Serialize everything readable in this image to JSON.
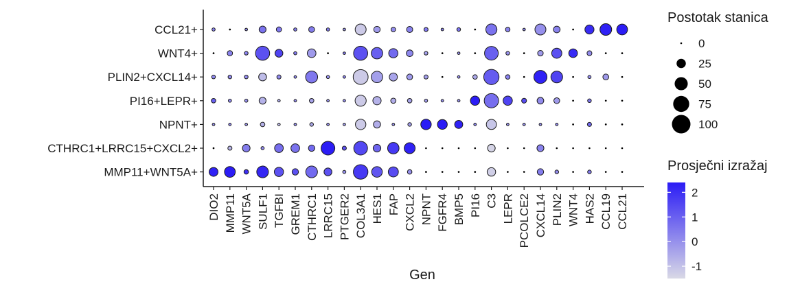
{
  "chart_data": {
    "type": "dotplot",
    "xlabel": "Gen",
    "genes": [
      "DIO2",
      "MMP11",
      "WNT5A",
      "SULF1",
      "TGFBI",
      "GREM1",
      "CTHRC1",
      "LRRC15",
      "PTGER2",
      "COL3A1",
      "HES1",
      "FAP",
      "CXCL2",
      "NPNT",
      "FGFR4",
      "BMP5",
      "PI16",
      "C3",
      "LEPR",
      "PCOLCE2",
      "CXCL14",
      "PLIN2",
      "WNT4",
      "HAS2",
      "CCL19",
      "CCL21"
    ],
    "clusters": [
      "CCL21+",
      "WNT4+",
      "PLIN2+CXCL14+",
      "PI16+LEPR+",
      "NPNT+",
      "CTHRC1+LRRC15+CXCL2+",
      "MMP11+WNT5A+"
    ],
    "pct": [
      [
        3,
        1,
        2,
        14,
        8,
        3,
        10,
        3,
        2,
        35,
        12,
        6,
        11,
        5,
        2,
        4,
        1,
        36,
        6,
        2,
        35,
        13,
        1,
        24,
        40,
        34
      ],
      [
        1,
        8,
        4,
        58,
        18,
        3,
        22,
        1,
        2,
        58,
        38,
        25,
        13,
        4,
        1,
        2,
        1,
        55,
        4,
        1,
        9,
        30,
        22,
        7,
        1,
        1
      ],
      [
        4,
        4,
        4,
        18,
        5,
        2,
        42,
        3,
        2,
        65,
        38,
        19,
        10,
        5,
        1,
        2,
        6,
        68,
        6,
        1,
        50,
        40,
        1,
        3,
        10,
        1
      ],
      [
        6,
        3,
        3,
        14,
        2,
        2,
        6,
        2,
        2,
        36,
        20,
        8,
        6,
        3,
        2,
        2,
        25,
        60,
        25,
        7,
        13,
        10,
        1,
        4,
        1,
        1
      ],
      [
        2,
        2,
        2,
        6,
        2,
        2,
        4,
        2,
        2,
        32,
        15,
        2,
        4,
        32,
        28,
        19,
        2,
        30,
        2,
        2,
        2,
        2,
        1,
        5,
        1,
        1
      ],
      [
        1,
        5,
        17,
        3,
        22,
        22,
        12,
        55,
        5,
        55,
        17,
        38,
        35,
        0,
        0,
        0,
        0,
        17,
        0,
        0,
        14,
        0,
        0,
        0,
        0,
        0
      ],
      [
        23,
        34,
        6,
        40,
        25,
        12,
        40,
        18,
        3,
        62,
        33,
        30,
        6,
        1,
        0,
        0,
        1,
        21,
        0,
        0,
        12,
        4,
        0,
        4,
        0,
        0
      ]
    ],
    "avg": [
      [
        0.3,
        0.0,
        0.1,
        0.6,
        0.5,
        0.4,
        0.4,
        0.4,
        0.0,
        -1.2,
        -0.2,
        0.1,
        0.3,
        0.5,
        0.4,
        0.6,
        0.1,
        0.6,
        0.3,
        0.3,
        0.0,
        0.3,
        0.1,
        2.1,
        2.3,
        2.4
      ],
      [
        0.0,
        0.3,
        0.3,
        1.3,
        1.6,
        0.5,
        -0.2,
        0.4,
        0.5,
        1.3,
        1.0,
        0.8,
        0.2,
        -0.3,
        0.0,
        0.0,
        0.0,
        1.0,
        0.0,
        0.0,
        -0.2,
        1.3,
        2.1,
        0.1,
        0.0,
        0.0
      ],
      [
        0.2,
        0.1,
        0.1,
        -0.9,
        0.1,
        0.2,
        0.5,
        0.0,
        0.3,
        -1.2,
        -0.3,
        -0.4,
        -0.2,
        -0.3,
        0.0,
        0.0,
        -0.5,
        1.1,
        0.3,
        0.3,
        2.3,
        1.6,
        0.0,
        0.0,
        -0.2,
        0.0
      ],
      [
        1.0,
        0.1,
        0.0,
        -0.7,
        -0.5,
        0.1,
        -0.4,
        0.0,
        0.0,
        -1.2,
        -0.7,
        -0.6,
        -0.4,
        -0.2,
        0.0,
        0.0,
        2.4,
        0.7,
        1.6,
        1.4,
        0.1,
        -0.2,
        0.0,
        0.5,
        0.0,
        0.0
      ],
      [
        0.0,
        0.1,
        -0.1,
        -0.7,
        -0.9,
        0.0,
        -0.5,
        0.0,
        -0.3,
        -1.2,
        -0.6,
        0.0,
        -0.3,
        2.4,
        2.4,
        2.3,
        0.2,
        -1.1,
        0.0,
        0.0,
        0.0,
        0.0,
        0.0,
        0.8,
        0.0,
        0.0
      ],
      [
        0.0,
        -0.8,
        0.4,
        0.1,
        0.7,
        0.6,
        0.8,
        2.4,
        1.3,
        1.5,
        0.9,
        1.8,
        2.3,
        0.0,
        0.0,
        0.0,
        0.0,
        -1.4,
        0.0,
        0.0,
        0.3,
        0.0,
        0.0,
        0.0,
        0.0,
        0.0
      ],
      [
        2.3,
        2.4,
        2.0,
        2.2,
        1.3,
        1.3,
        0.8,
        1.3,
        0.0,
        1.8,
        1.2,
        1.4,
        0.0,
        0.0,
        0.0,
        0.0,
        0.0,
        -1.3,
        0.0,
        0.0,
        0.4,
        0.1,
        0.0,
        0.4,
        0.0,
        0.0
      ]
    ],
    "size_legend": {
      "title": "Postotak stanica",
      "values": [
        0,
        25,
        50,
        75,
        100
      ],
      "labels": [
        "0",
        "25",
        "50",
        "75",
        "100"
      ]
    },
    "color_legend": {
      "title": "Prosječni izražaj",
      "ticks": [
        2,
        1,
        0,
        -1
      ],
      "labels": [
        "2",
        "1",
        "0",
        "-1"
      ],
      "range": [
        -1.5,
        2.4
      ],
      "color_high": "#2b1cf5",
      "color_low": "#d6d6e6"
    },
    "grid": false
  }
}
